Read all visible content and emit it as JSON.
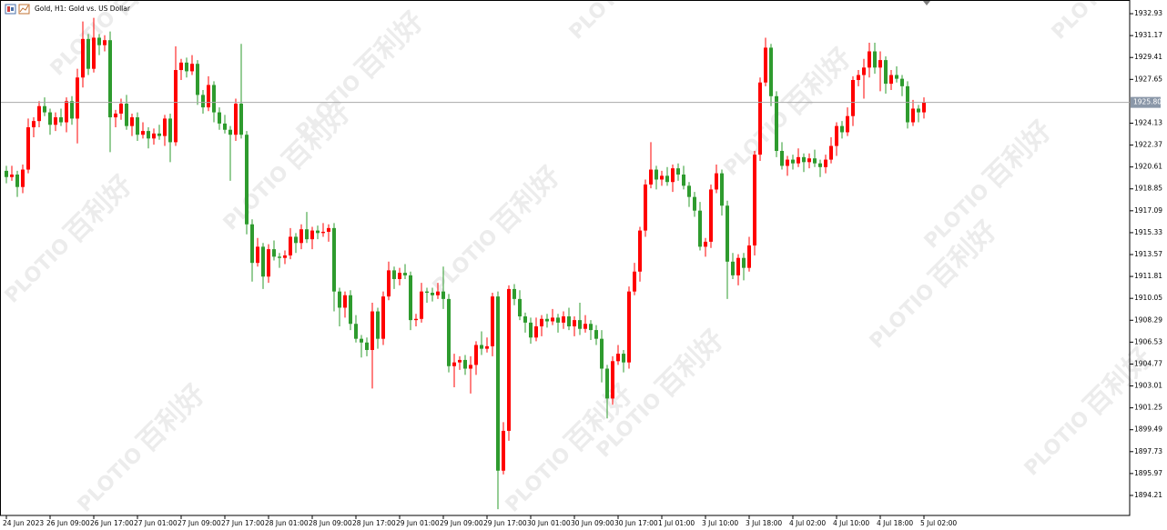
{
  "chart_data": {
    "type": "candlestick",
    "title": "Gold, H1:  Gold vs. US Dollar",
    "categories": [
      "24 Jun 2023",
      null,
      null,
      null,
      null,
      null,
      null,
      null,
      "26 Jun 09:00",
      null,
      null,
      null,
      null,
      null,
      null,
      null,
      "26 Jun 17:00",
      null,
      null,
      null,
      null,
      null,
      null,
      null,
      "27 Jun 01:00",
      null,
      null,
      null,
      null,
      null,
      null,
      null,
      "27 Jun 09:00",
      null,
      null,
      null,
      null,
      null,
      null,
      null,
      "27 Jun 17:00",
      null,
      null,
      null,
      null,
      null,
      null,
      null,
      "28 Jun 01:00",
      null,
      null,
      null,
      null,
      null,
      null,
      null,
      "28 Jun 09:00",
      null,
      null,
      null,
      null,
      null,
      null,
      null,
      "28 Jun 17:00",
      null,
      null,
      null,
      null,
      null,
      null,
      null,
      "29 Jun 01:00",
      null,
      null,
      null,
      null,
      null,
      null,
      null,
      "29 Jun 09:00",
      null,
      null,
      null,
      null,
      null,
      null,
      null,
      "29 Jun 17:00",
      null,
      null,
      null,
      null,
      null,
      null,
      null,
      "30 Jun 01:00",
      null,
      null,
      null,
      null,
      null,
      null,
      null,
      "30 Jun 09:00",
      null,
      null,
      null,
      null,
      null,
      null,
      null,
      "30 Jun 17:00",
      null,
      null,
      null,
      null,
      null,
      null,
      null,
      "1 Jul 01:00",
      null,
      null,
      null,
      null,
      null,
      null,
      null,
      "3 Jul 10:00",
      null,
      null,
      null,
      null,
      null,
      null,
      null,
      "3 Jul 18:00",
      null,
      null,
      null,
      null,
      null,
      null,
      null,
      "4 Jul 02:00",
      null,
      null,
      null,
      null,
      null,
      null,
      null,
      "4 Jul 10:00",
      null,
      null,
      null,
      null,
      null,
      null,
      null,
      "4 Jul 18:00",
      null,
      null,
      null,
      null,
      null,
      null,
      null,
      "5 Jul 02:00"
    ],
    "open": [
      1920.3,
      1919.8,
      1920.0,
      1919.0,
      1920.4,
      1923.8,
      1924.3,
      1925.5,
      1925.0,
      1924.0,
      1924.6,
      1924.2,
      1925.9,
      1924.5,
      1927.8,
      1930.9,
      1928.5,
      1931.0,
      1930.4,
      1930.8,
      1924.6,
      1924.9,
      1925.7,
      1923.9,
      1924.6,
      1923.2,
      1923.5,
      1922.9,
      1923.3,
      1923.1,
      1924.5,
      1922.6,
      1928.4,
      1929.0,
      1928.3,
      1928.9,
      1926.4,
      1925.4,
      1927.2,
      1925.0,
      1924.1,
      1923.6,
      1923.2,
      1925.7,
      1923.2,
      1916.0,
      1912.9,
      1914.2,
      1911.8,
      1914.0,
      1913.4,
      1913.3,
      1913.5,
      1915.0,
      1914.5,
      1915.6,
      1914.8,
      1915.5,
      1915.3,
      1915.4,
      1915.7,
      1910.6,
      1909.3,
      1910.3,
      1908.0,
      1906.8,
      1906.5,
      1905.9,
      1909.0,
      1906.8,
      1910.2,
      1912.3,
      1911.6,
      1912.1,
      1911.9,
      1908.3,
      1908.4,
      1910.6,
      1910.5,
      1910.3,
      1910.6,
      1910.0,
      1904.6,
      1904.9,
      1905.1,
      1904.4,
      1904.7,
      1906.3,
      1906.0,
      1906.2,
      1910.2,
      1896.2,
      1899.4,
      1910.8,
      1910.0,
      1908.6,
      1908.1,
      1906.9,
      1907.8,
      1908.4,
      1908.2,
      1908.5,
      1908.1,
      1908.6,
      1907.8,
      1908.3,
      1907.6,
      1908.0,
      1907.5,
      1906.8,
      1904.4,
      1902.0,
      1905.0,
      1905.6,
      1904.9,
      1910.6,
      1912.2,
      1915.5,
      1919.2,
      1920.4,
      1919.6,
      1919.9,
      1919.4,
      1920.5,
      1920.0,
      1919.1,
      1918.2,
      1917.1,
      1914.2,
      1914.6,
      1918.8,
      1920.1,
      1917.5,
      1913.0,
      1911.9,
      1913.3,
      1912.5,
      1914.3,
      1921.6,
      1927.4,
      1930.2,
      1926.3,
      1921.9,
      1920.7,
      1921.2,
      1920.9,
      1921.4,
      1921.0,
      1921.3,
      1920.9,
      1920.6,
      1921.2,
      1922.3,
      1923.9,
      1923.4,
      1924.7,
      1927.6,
      1928.0,
      1928.6,
      1929.9,
      1928.6,
      1929.2,
      1927.3,
      1928.0,
      1927.7,
      1927.1,
      1924.2,
      1925.3,
      1925.0
    ],
    "high": [
      1920.7,
      1920.7,
      1920.3,
      1920.8,
      1924.5,
      1924.6,
      1925.9,
      1926.2,
      1925.3,
      1925.0,
      1925.3,
      1926.2,
      1926.3,
      1928.5,
      1932.3,
      1931.3,
      1932.6,
      1931.3,
      1931.2,
      1931.5,
      1925.2,
      1926.1,
      1926.4,
      1924.9,
      1925.0,
      1924.2,
      1923.8,
      1923.7,
      1924.0,
      1924.8,
      1924.9,
      1930.3,
      1929.3,
      1929.4,
      1929.6,
      1929.2,
      1926.8,
      1927.9,
      1927.5,
      1925.4,
      1924.8,
      1923.9,
      1926.1,
      1930.5,
      1923.5,
      1916.4,
      1914.9,
      1914.5,
      1914.4,
      1914.7,
      1913.7,
      1913.9,
      1915.7,
      1915.3,
      1916.0,
      1917.0,
      1915.8,
      1915.9,
      1916.1,
      1916.0,
      1916.1,
      1910.9,
      1910.6,
      1910.7,
      1908.7,
      1907.1,
      1906.9,
      1909.7,
      1909.3,
      1910.6,
      1913.0,
      1912.6,
      1912.5,
      1912.8,
      1912.2,
      1908.8,
      1911.3,
      1910.9,
      1910.9,
      1911.3,
      1912.6,
      1910.4,
      1905.6,
      1905.4,
      1905.5,
      1905.4,
      1906.6,
      1907.4,
      1906.9,
      1910.5,
      1910.6,
      1900.1,
      1911.1,
      1911.2,
      1910.7,
      1908.9,
      1908.5,
      1908.5,
      1908.7,
      1908.8,
      1909.2,
      1908.8,
      1909.0,
      1909.3,
      1908.6,
      1909.7,
      1908.7,
      1908.3,
      1907.9,
      1907.5,
      1904.7,
      1905.4,
      1906.3,
      1905.9,
      1911.0,
      1912.9,
      1915.8,
      1919.6,
      1922.6,
      1920.7,
      1920.3,
      1920.6,
      1920.8,
      1920.9,
      1920.7,
      1919.4,
      1918.6,
      1917.8,
      1914.9,
      1919.2,
      1920.8,
      1920.4,
      1917.9,
      1913.7,
      1913.6,
      1913.7,
      1915.0,
      1921.9,
      1927.8,
      1931.0,
      1930.5,
      1926.7,
      1922.6,
      1921.5,
      1921.6,
      1922.1,
      1921.7,
      1921.7,
      1922.0,
      1921.2,
      1921.6,
      1923.0,
      1924.2,
      1924.3,
      1925.4,
      1927.9,
      1928.4,
      1929.3,
      1930.6,
      1930.6,
      1929.9,
      1929.5,
      1928.4,
      1928.7,
      1928.0,
      1927.5,
      1926.0,
      1925.6,
      1926.2
    ],
    "low": [
      1919.3,
      1919.5,
      1918.2,
      1918.5,
      1920.1,
      1923.0,
      1923.8,
      1924.7,
      1923.2,
      1923.5,
      1923.9,
      1923.4,
      1924.0,
      1922.5,
      1927.0,
      1928.0,
      1928.2,
      1929.6,
      1929.9,
      1921.8,
      1923.8,
      1924.4,
      1923.6,
      1923.1,
      1922.7,
      1922.9,
      1922.1,
      1922.4,
      1922.8,
      1922.3,
      1921.0,
      1922.3,
      1927.6,
      1927.8,
      1928.0,
      1925.6,
      1924.9,
      1925.1,
      1924.2,
      1923.6,
      1923.3,
      1919.5,
      1922.7,
      1922.9,
      1915.2,
      1911.4,
      1912.6,
      1910.8,
      1911.3,
      1913.1,
      1912.5,
      1912.8,
      1913.2,
      1913.7,
      1914.0,
      1914.5,
      1914.0,
      1914.8,
      1915.0,
      1914.6,
      1909.0,
      1907.8,
      1908.5,
      1907.5,
      1906.5,
      1905.3,
      1905.4,
      1902.8,
      1906.0,
      1906.3,
      1909.9,
      1910.8,
      1911.1,
      1911.6,
      1907.5,
      1907.8,
      1908.1,
      1909.7,
      1909.8,
      1910.0,
      1909.2,
      1904.1,
      1902.9,
      1904.3,
      1903.9,
      1902.4,
      1903.9,
      1905.5,
      1905.7,
      1905.4,
      1893.1,
      1895.9,
      1898.6,
      1909.5,
      1908.3,
      1907.3,
      1906.4,
      1906.6,
      1907.0,
      1907.7,
      1907.9,
      1907.3,
      1907.6,
      1907.5,
      1907.0,
      1907.1,
      1907.3,
      1906.7,
      1906.3,
      1903.3,
      1900.4,
      1901.5,
      1904.7,
      1904.1,
      1904.4,
      1910.3,
      1911.4,
      1915.0,
      1918.9,
      1918.8,
      1919.1,
      1919.1,
      1918.6,
      1919.5,
      1918.8,
      1917.4,
      1916.6,
      1913.9,
      1913.4,
      1914.1,
      1918.5,
      1916.7,
      1910.0,
      1911.6,
      1911.1,
      1911.5,
      1912.2,
      1913.5,
      1921.1,
      1927.1,
      1925.5,
      1921.4,
      1920.4,
      1919.9,
      1920.4,
      1920.6,
      1920.2,
      1920.5,
      1920.6,
      1919.8,
      1920.1,
      1920.9,
      1921.5,
      1922.9,
      1923.1,
      1923.9,
      1927.1,
      1926.1,
      1927.8,
      1928.1,
      1926.7,
      1926.5,
      1926.8,
      1927.4,
      1926.3,
      1923.7,
      1923.9,
      1924.2,
      1924.5
    ],
    "close": [
      1919.8,
      1920.0,
      1919.0,
      1920.4,
      1923.8,
      1924.3,
      1925.5,
      1925.0,
      1924.0,
      1924.6,
      1924.2,
      1925.9,
      1924.5,
      1927.8,
      1930.9,
      1928.5,
      1931.0,
      1930.4,
      1930.8,
      1924.6,
      1924.9,
      1925.7,
      1923.9,
      1924.6,
      1923.2,
      1923.5,
      1922.9,
      1923.3,
      1923.1,
      1924.5,
      1922.6,
      1928.4,
      1929.0,
      1928.3,
      1928.9,
      1926.4,
      1925.4,
      1927.2,
      1925.0,
      1924.1,
      1923.6,
      1923.2,
      1925.7,
      1923.2,
      1916.0,
      1912.9,
      1914.2,
      1911.8,
      1914.0,
      1913.4,
      1913.3,
      1913.5,
      1915.0,
      1914.5,
      1915.6,
      1914.8,
      1915.5,
      1915.3,
      1915.4,
      1915.7,
      1910.6,
      1909.3,
      1910.3,
      1908.0,
      1906.8,
      1906.5,
      1905.9,
      1909.0,
      1906.8,
      1910.2,
      1912.3,
      1911.6,
      1912.1,
      1911.9,
      1908.3,
      1908.4,
      1910.6,
      1910.5,
      1910.3,
      1910.6,
      1910.0,
      1904.6,
      1904.9,
      1905.1,
      1904.4,
      1904.7,
      1906.3,
      1906.0,
      1906.2,
      1910.2,
      1896.2,
      1899.4,
      1910.8,
      1910.0,
      1908.6,
      1908.1,
      1906.9,
      1907.8,
      1908.4,
      1908.2,
      1908.5,
      1908.1,
      1908.6,
      1907.8,
      1908.3,
      1907.6,
      1908.0,
      1907.5,
      1906.8,
      1904.4,
      1902.0,
      1905.0,
      1905.6,
      1904.9,
      1910.6,
      1912.2,
      1915.5,
      1919.2,
      1920.4,
      1919.6,
      1919.9,
      1919.4,
      1920.5,
      1920.0,
      1919.1,
      1918.2,
      1917.1,
      1914.2,
      1914.6,
      1918.8,
      1920.1,
      1917.5,
      1913.0,
      1911.9,
      1913.3,
      1912.5,
      1914.3,
      1921.6,
      1927.4,
      1930.2,
      1926.3,
      1921.9,
      1920.7,
      1921.2,
      1920.9,
      1921.4,
      1921.0,
      1921.3,
      1920.9,
      1920.6,
      1921.2,
      1922.3,
      1923.9,
      1923.4,
      1924.7,
      1927.6,
      1928.0,
      1928.6,
      1929.9,
      1928.6,
      1929.2,
      1927.3,
      1928.0,
      1927.7,
      1927.1,
      1924.2,
      1925.3,
      1925.0,
      1925.8
    ],
    "up_color": "#ff0000",
    "down_color": "#2e9b2e",
    "ylim": [
      1892.6,
      1934.03
    ],
    "yticks": [
      1932.93,
      1931.17,
      1929.41,
      1927.65,
      1924.13,
      1922.37,
      1920.61,
      1918.85,
      1917.09,
      1915.33,
      1913.57,
      1911.81,
      1910.05,
      1908.29,
      1906.53,
      1904.77,
      1903.01,
      1901.25,
      1899.49,
      1897.73,
      1895.97,
      1894.21
    ],
    "current_price": {
      "value": 1925.8,
      "label": "1925.80"
    }
  },
  "watermark": {
    "brand": "PLOTIO",
    "name": "百利好"
  }
}
